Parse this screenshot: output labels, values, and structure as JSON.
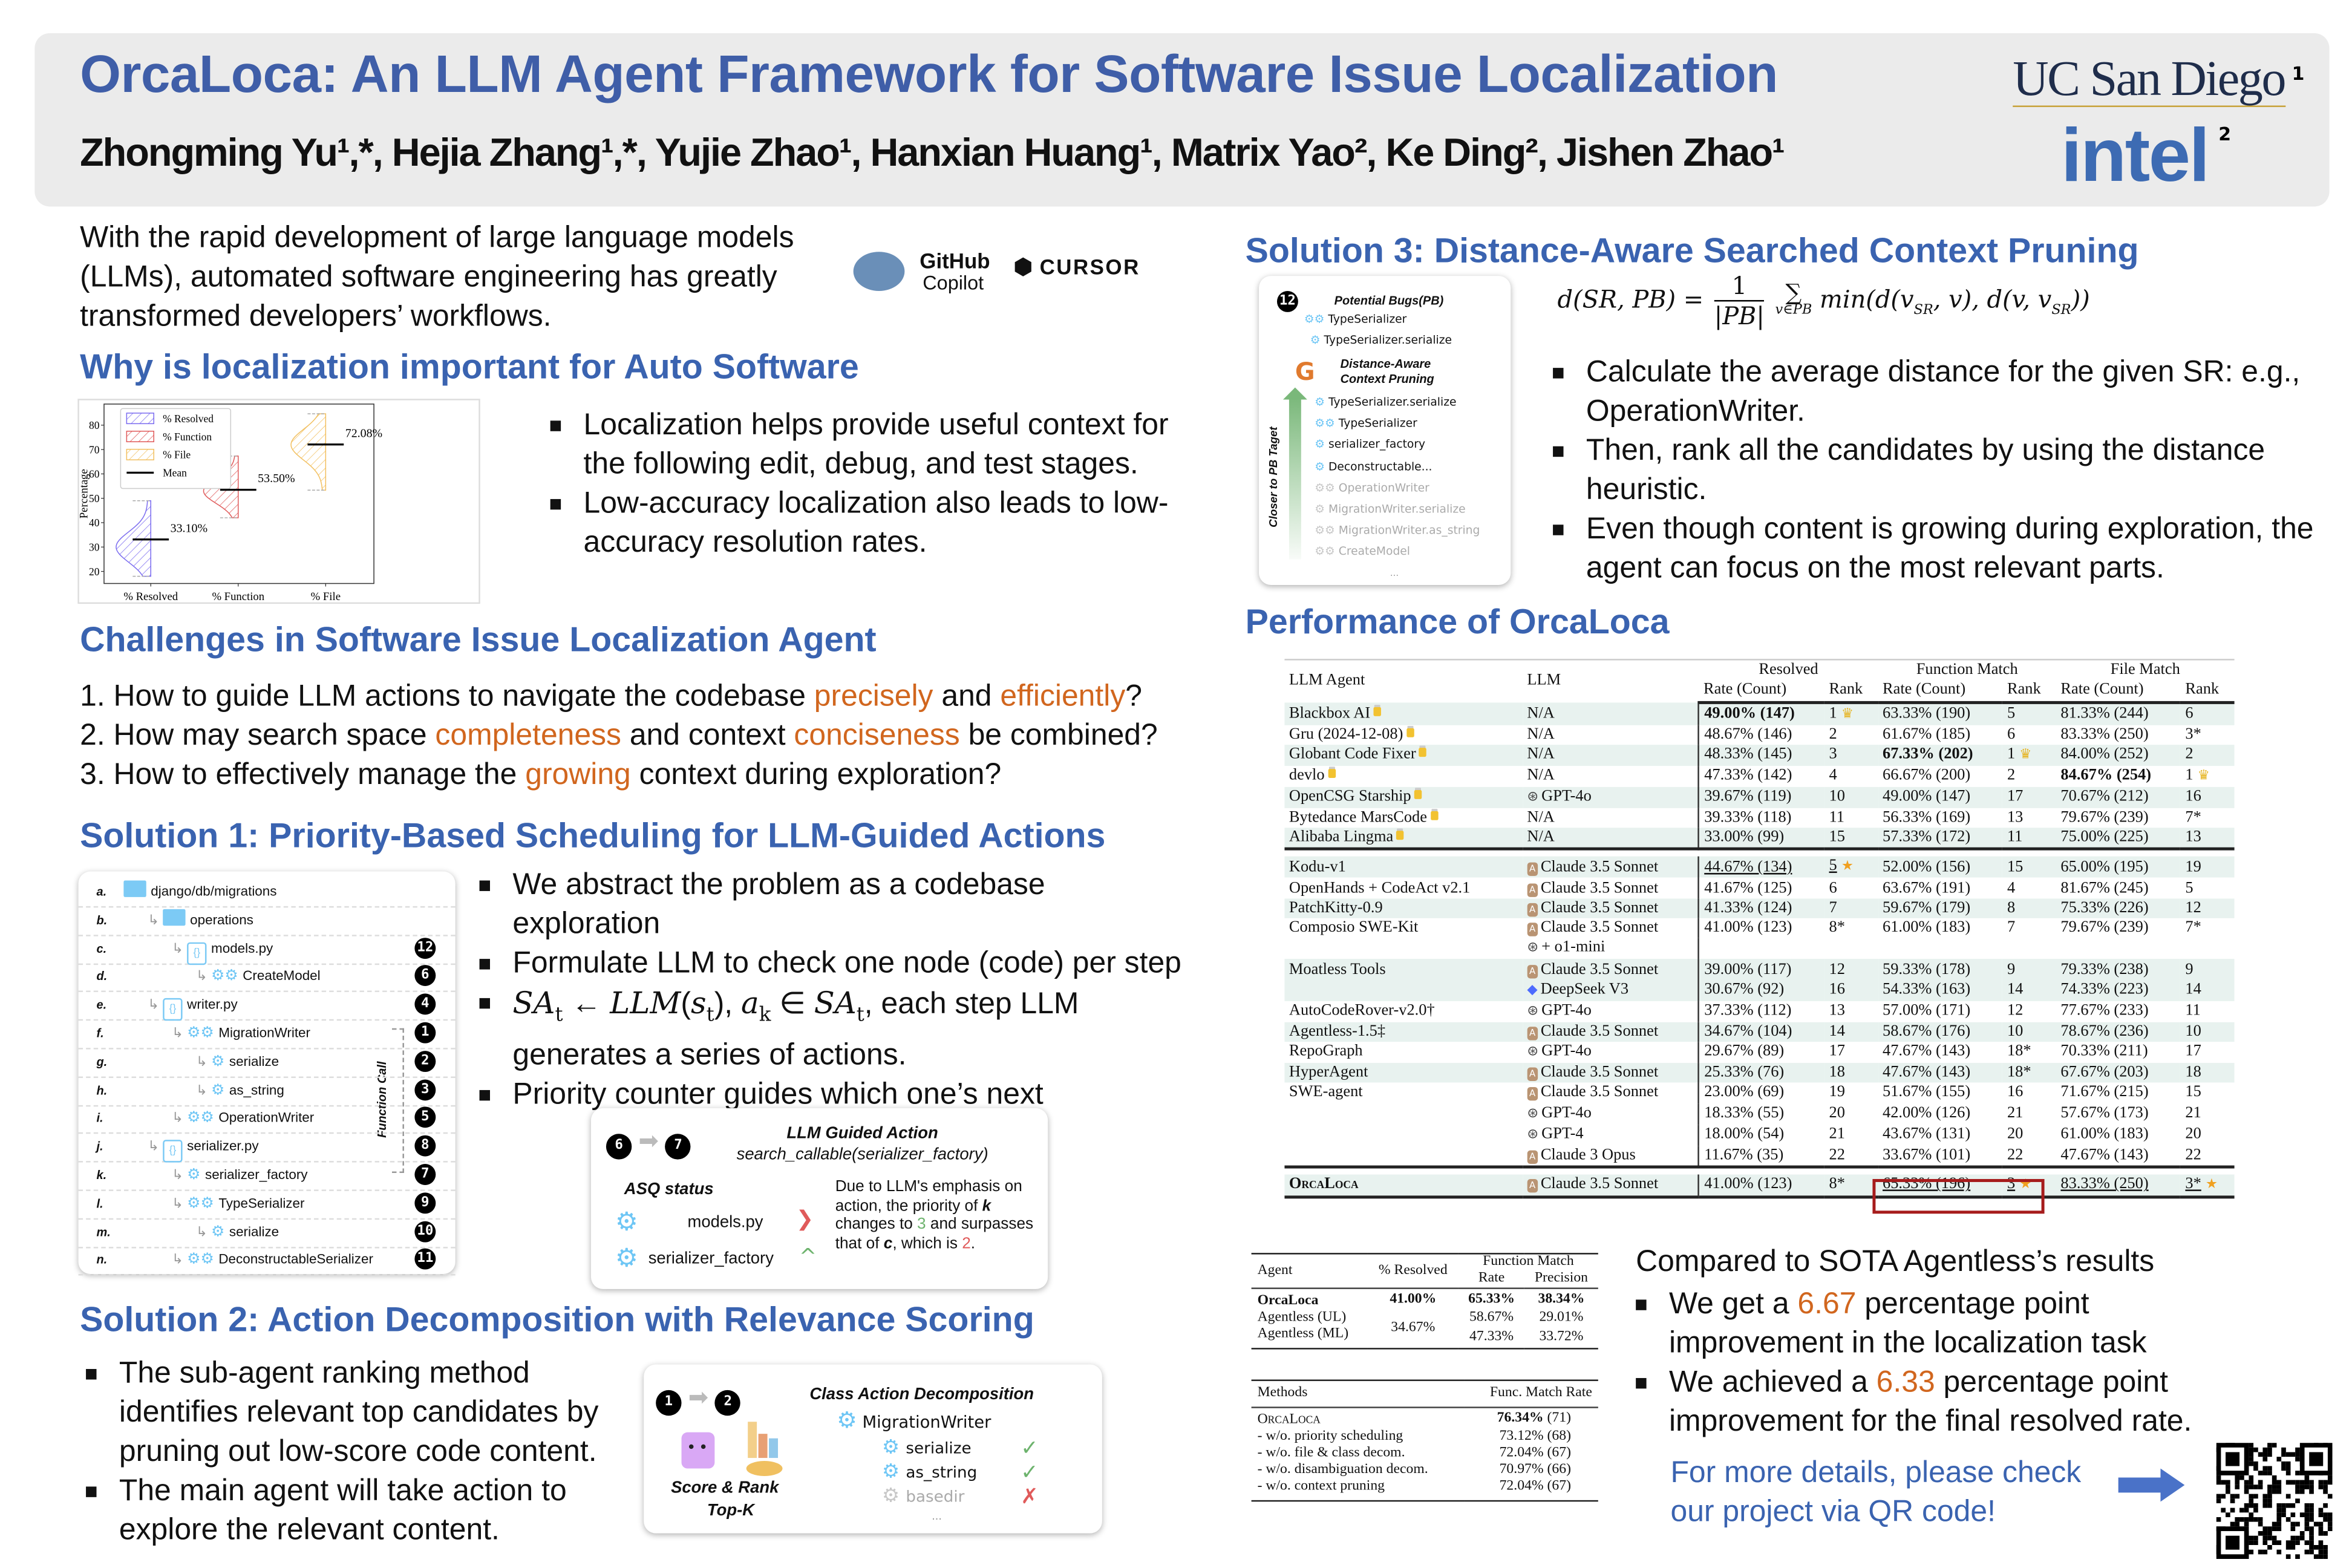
{
  "header": {
    "title": "OrcaLoca: An LLM Agent Framework for Software Issue Localization",
    "authors": "Zhongming Yu¹,*, Hejia Zhang¹,*, Yujie Zhao¹, Hanxian Huang¹, Matrix Yao², Ke Ding², Jishen Zhao¹",
    "logos": {
      "ucsd": "UC San Diego",
      "ucsd_sup": "1",
      "intel": "intel",
      "intel_sup": "2"
    }
  },
  "intro": {
    "text": "With the rapid development of large language models (LLMs), automated software engineering has greatly transformed developers’ workflows.",
    "logos": {
      "github": "GitHub",
      "copilot": "Copilot",
      "cursor": "CURSOR"
    }
  },
  "why": {
    "heading": "Why is localization important for Auto Software",
    "bullets": [
      "Localization helps provide useful context for the following edit, debug, and test stages.",
      "Low-accuracy localization also leads to low-accuracy resolution rates."
    ]
  },
  "chart_data": {
    "type": "violin",
    "categories": [
      "% Resolved",
      "% Function",
      "% File"
    ],
    "ylabel": "Percentage",
    "yticks": [
      20,
      30,
      40,
      50,
      60,
      70,
      80
    ],
    "ylim": [
      15,
      87
    ],
    "legend": [
      "% Resolved",
      "% Function",
      "% File",
      "Mean"
    ],
    "legend_placement": "top-left",
    "series": [
      {
        "name": "% Resolved",
        "min": 18.0,
        "max": 49.0,
        "mode": 30,
        "mean": 33.1,
        "label": "33.10%",
        "color": "#7b6cf0"
      },
      {
        "name": "% Function",
        "min": 42.0,
        "max": 67.33,
        "mode": 53,
        "mean": 53.5,
        "label": "53.50%",
        "color": "#e05a5a"
      },
      {
        "name": "% File",
        "min": 53.33,
        "max": 84.67,
        "mode": 72,
        "mean": 72.08,
        "label": "72.08%",
        "color": "#f2c060"
      }
    ]
  },
  "challenges": {
    "heading": "Challenges in Software Issue Localization Agent",
    "items": [
      [
        {
          "t": "1.  How to guide LLM actions to navigate the codebase "
        },
        {
          "t": "precisely",
          "hl": true
        },
        {
          "t": " and "
        },
        {
          "t": "efficiently",
          "hl": true
        },
        {
          "t": "?"
        }
      ],
      [
        {
          "t": "2.  How may search space "
        },
        {
          "t": "completeness",
          "hl": true
        },
        {
          "t": " and context "
        },
        {
          "t": "conciseness",
          "hl": true
        },
        {
          "t": " be combined?"
        }
      ],
      [
        {
          "t": "3.  How to effectively manage the "
        },
        {
          "t": "growing",
          "hl": true
        },
        {
          "t": " context during exploration?"
        }
      ]
    ]
  },
  "solution1": {
    "heading": "Solution 1: Priority-Based Scheduling for LLM-Guided Actions",
    "tree": [
      {
        "letter": "a.",
        "label": "django/db/migrations",
        "kind": "folder",
        "depth": 0,
        "step": ""
      },
      {
        "letter": "b.",
        "label": "operations",
        "kind": "folder",
        "depth": 1,
        "step": ""
      },
      {
        "letter": "c.",
        "label": "models.py",
        "kind": "file",
        "depth": 2,
        "step": "12"
      },
      {
        "letter": "d.",
        "label": "CreateModel",
        "kind": "class",
        "depth": 3,
        "step": "6"
      },
      {
        "letter": "e.",
        "label": "writer.py",
        "kind": "file",
        "depth": 1,
        "step": "4"
      },
      {
        "letter": "f.",
        "label": "MigrationWriter",
        "kind": "class",
        "depth": 2,
        "step": "1"
      },
      {
        "letter": "g.",
        "label": "serialize",
        "kind": "func",
        "depth": 3,
        "step": "2"
      },
      {
        "letter": "h.",
        "label": "as_string",
        "kind": "func",
        "depth": 3,
        "step": "3"
      },
      {
        "letter": "i.",
        "label": "OperationWriter",
        "kind": "class",
        "depth": 2,
        "step": "5"
      },
      {
        "letter": "j.",
        "label": "serializer.py",
        "kind": "file",
        "depth": 1,
        "step": "8"
      },
      {
        "letter": "k.",
        "label": "serializer_factory",
        "kind": "func",
        "depth": 2,
        "step": "7"
      },
      {
        "letter": "l.",
        "label": "TypeSerializer",
        "kind": "class",
        "depth": 2,
        "step": "9"
      },
      {
        "letter": "m.",
        "label": "serialize",
        "kind": "func",
        "depth": 3,
        "step": "10"
      },
      {
        "letter": "n.",
        "label": "DeconstructableSerializer",
        "kind": "class",
        "depth": 2,
        "step": "11"
      }
    ],
    "function_call": "Function Call",
    "bullets": [
      [
        {
          "t": "We abstract the problem as a codebase exploration"
        }
      ],
      [
        {
          "t": "Formulate LLM to check one node (code) per step"
        }
      ],
      [
        {
          "t": "SA",
          "i": true
        },
        {
          "t": "t",
          "sub": true
        },
        {
          "t": " ← "
        },
        {
          "t": "LLM",
          "i": true
        },
        {
          "t": "("
        },
        {
          "t": "s",
          "i": true
        },
        {
          "t": "t",
          "sub": true
        },
        {
          "t": "), "
        },
        {
          "t": "a",
          "i": true
        },
        {
          "t": "k",
          "sub": true
        },
        {
          "t": " ∈ "
        },
        {
          "t": "SA",
          "i": true
        },
        {
          "t": "t",
          "sub": true
        },
        {
          "t": ", each step LLM generates a series of actions."
        }
      ],
      [
        {
          "t": "Priority counter guides which one’s next"
        }
      ]
    ],
    "guided": {
      "steps": [
        "6",
        "7"
      ],
      "title": "LLM Guided Action",
      "call": "search_callable(serializer_factory)",
      "asq_label": "ASQ status",
      "items": [
        {
          "label": "models.py",
          "dir": "down"
        },
        {
          "label": "serializer_factory",
          "dir": "up"
        }
      ],
      "note": [
        {
          "t": "Due to LLM's emphasis on action, the priority of "
        },
        {
          "t": "k",
          "b": true
        },
        {
          "t": " changes to "
        },
        {
          "t": "3",
          "c": "#6db36d"
        },
        {
          "t": " and surpasses that of "
        },
        {
          "t": "c",
          "b": true
        },
        {
          "t": ", which is "
        },
        {
          "t": "2",
          "c": "#e05a5a"
        },
        {
          "t": "."
        }
      ]
    }
  },
  "solution2": {
    "heading": "Solution 2: Action Decomposition with Relevance Scoring",
    "bullets": [
      "The sub-agent ranking method identifies relevant top candidates by pruning out low-score code content.",
      "The main agent will take action to explore the relevant content."
    ],
    "diagram": {
      "steps": [
        "1",
        "2"
      ],
      "score_label": "Score & Rank",
      "topk_label": "Top-K",
      "title": "Class Action Decomposition",
      "class_name": "MigrationWriter",
      "methods": [
        {
          "name": "serialize",
          "keep": true
        },
        {
          "name": "as_string",
          "keep": true
        },
        {
          "name": "basedir",
          "keep": false
        }
      ],
      "ellipsis": "..."
    }
  },
  "solution3": {
    "heading": "Solution 3: Distance-Aware Searched Context Pruning",
    "diagram": {
      "step": "12",
      "pb_title": "Potential Bugs(PB)",
      "pb_items": [
        {
          "name": "TypeSerializer",
          "kind": "class"
        },
        {
          "name": "TypeSerializer.serialize",
          "kind": "func"
        }
      ],
      "pruning_title": [
        "Distance-Aware",
        "Context Pruning"
      ],
      "ranked": [
        {
          "name": "TypeSerializer.serialize",
          "kind": "func",
          "active": true
        },
        {
          "name": "TypeSerializer",
          "kind": "class",
          "active": true
        },
        {
          "name": "serializer_factory",
          "kind": "func",
          "active": true
        },
        {
          "name": "Deconstructable...",
          "kind": "func",
          "active": true
        },
        {
          "name": "OperationWriter",
          "kind": "class",
          "active": false
        },
        {
          "name": "MigrationWriter.serialize",
          "kind": "func",
          "active": false
        },
        {
          "name": "MigrationWriter.as_string",
          "kind": "class",
          "active": false
        },
        {
          "name": "CreateModel",
          "kind": "class",
          "active": false
        }
      ],
      "axis_label": "Closer to PB Taget",
      "ellipsis": "..."
    },
    "formula": {
      "lhs": "d(SR, PB) =",
      "num": "1",
      "den": "|PB|",
      "sum": "∑",
      "sum_sub": "v∈PB",
      "rhs1": "min(d(v",
      "s1": "SR",
      "rhs2": ", v), d(v, v",
      "s2": "SR",
      "rhs3": "))"
    },
    "bullets": [
      "Calculate the average distance for the given SR: e.g., OperationWriter.",
      "Then, rank all the candidates by using the distance heuristic.",
      "Even though content is growing during exploration, the agent can focus on the most relevant parts."
    ]
  },
  "performance": {
    "heading": "Performance of OrcaLoca",
    "table": {
      "headers": {
        "agent": "LLM Agent",
        "llm": "LLM",
        "resolved": "Resolved",
        "function": "Function Match",
        "file": "File Match",
        "rate": "Rate (Count)",
        "rank": "Rank"
      },
      "rows": [
        {
          "agent": "Blackbox AI",
          "lock": true,
          "llm": "N/A",
          "r": "49.00% (147)",
          "rr": "1",
          "f": "63.33% (190)",
          "fr": "5",
          "fi": "81.33% (244)",
          "fir": "6",
          "bold": [
            "r"
          ],
          "crown": [
            "rr"
          ]
        },
        {
          "agent": "Gru (2024-12-08)",
          "lock": true,
          "llm": "N/A",
          "r": "48.67% (146)",
          "rr": "2",
          "f": "61.67% (185)",
          "fr": "6",
          "fi": "83.33% (250)",
          "fir": "3*"
        },
        {
          "agent": "Globant Code Fixer",
          "lock": true,
          "llm": "N/A",
          "r": "48.33% (145)",
          "rr": "3",
          "f": "67.33% (202)",
          "fr": "1",
          "fi": "84.00% (252)",
          "fir": "2",
          "bold": [
            "f"
          ],
          "crown": [
            "fr"
          ]
        },
        {
          "agent": "devlo",
          "lock": true,
          "llm": "N/A",
          "r": "47.33% (142)",
          "rr": "4",
          "f": "66.67% (200)",
          "fr": "2",
          "fi": "84.67% (254)",
          "fir": "1",
          "bold": [
            "fi"
          ],
          "crown": [
            "fir"
          ]
        },
        {
          "agent": "OpenCSG Starship",
          "lock": true,
          "llm": "GPT-4o",
          "icon": "openai",
          "r": "39.67% (119)",
          "rr": "10",
          "f": "49.00% (147)",
          "fr": "17",
          "fi": "70.67% (212)",
          "fir": "16"
        },
        {
          "agent": "Bytedance MarsCode",
          "lock": true,
          "llm": "N/A",
          "r": "39.33% (118)",
          "rr": "11",
          "f": "56.33% (169)",
          "fr": "13",
          "fi": "79.67% (239)",
          "fir": "7*"
        },
        {
          "agent": "Alibaba Lingma",
          "lock": true,
          "llm": "N/A",
          "r": "33.00% (99)",
          "rr": "15",
          "f": "57.33% (172)",
          "fr": "11",
          "fi": "75.00% (225)",
          "fir": "13",
          "group_end": true
        },
        {
          "agent": "Kodu-v1",
          "llm": "Claude 3.5 Sonnet",
          "icon": "anthropic",
          "r": "44.67% (134)",
          "rr": "5",
          "f": "52.00% (156)",
          "fr": "15",
          "fi": "65.00% (195)",
          "fir": "19",
          "under": [
            "r",
            "rr"
          ],
          "star": [
            "rr"
          ]
        },
        {
          "agent": "OpenHands + CodeAct v2.1",
          "llm": "Claude 3.5 Sonnet",
          "icon": "anthropic",
          "r": "41.67% (125)",
          "rr": "6",
          "f": "63.67% (191)",
          "fr": "4",
          "fi": "81.67% (245)",
          "fir": "5"
        },
        {
          "agent": "PatchKitty-0.9",
          "llm": "Claude 3.5 Sonnet",
          "icon": "anthropic",
          "r": "41.33% (124)",
          "rr": "7",
          "f": "59.67% (179)",
          "fr": "8",
          "fi": "75.33% (226)",
          "fir": "12"
        },
        {
          "agent": "Composio SWE-Kit",
          "llm": "Claude 3.5 Sonnet",
          "icon": "anthropic",
          "r": "41.00% (123)",
          "rr": "8*",
          "f": "61.00% (183)",
          "fr": "7",
          "fi": "79.67% (239)",
          "fir": "7*"
        },
        {
          "agent": "",
          "llm": "+ o1-mini",
          "icon": "openai",
          "r": "",
          "rr": "",
          "f": "",
          "fr": "",
          "fi": "",
          "fir": ""
        },
        {
          "agent": "Moatless Tools",
          "llm": "Claude 3.5 Sonnet",
          "icon": "anthropic",
          "r": "39.00% (117)",
          "rr": "12",
          "f": "59.33% (178)",
          "fr": "9",
          "fi": "79.33% (238)",
          "fir": "9"
        },
        {
          "agent": "",
          "llm": "DeepSeek V3",
          "icon": "deepseek",
          "r": "30.67% (92)",
          "rr": "16",
          "f": "54.33% (163)",
          "fr": "14",
          "fi": "74.33% (223)",
          "fir": "14"
        },
        {
          "agent": "AutoCodeRover-v2.0†",
          "llm": "GPT-4o",
          "icon": "openai",
          "r": "37.33% (112)",
          "rr": "13",
          "f": "57.00% (171)",
          "fr": "12",
          "fi": "77.67% (233)",
          "fir": "11"
        },
        {
          "agent": "Agentless-1.5‡",
          "llm": "Claude 3.5 Sonnet",
          "icon": "anthropic",
          "r": "34.67% (104)",
          "rr": "14",
          "f": "58.67% (176)",
          "fr": "10",
          "fi": "78.67% (236)",
          "fir": "10"
        },
        {
          "agent": "RepoGraph",
          "llm": "GPT-4o",
          "icon": "openai",
          "r": "29.67% (89)",
          "rr": "17",
          "f": "47.67% (143)",
          "fr": "18*",
          "fi": "70.33% (211)",
          "fir": "17"
        },
        {
          "agent": "HyperAgent",
          "llm": "Claude 3.5 Sonnet",
          "icon": "anthropic",
          "r": "25.33% (76)",
          "rr": "18",
          "f": "47.67% (143)",
          "fr": "18*",
          "fi": "67.67% (203)",
          "fir": "18"
        },
        {
          "agent": "SWE-agent",
          "llm": "Claude 3.5 Sonnet",
          "icon": "anthropic",
          "r": "23.00% (69)",
          "rr": "19",
          "f": "51.67% (155)",
          "fr": "16",
          "fi": "71.67% (215)",
          "fir": "15"
        },
        {
          "agent": "",
          "llm": "GPT-4o",
          "icon": "openai",
          "r": "18.33% (55)",
          "rr": "20",
          "f": "42.00% (126)",
          "fr": "21",
          "fi": "57.67% (173)",
          "fir": "21"
        },
        {
          "agent": "",
          "llm": "GPT-4",
          "icon": "openai",
          "r": "18.00% (54)",
          "rr": "21",
          "f": "43.67% (131)",
          "fr": "20",
          "fi": "61.00% (183)",
          "fir": "20"
        },
        {
          "agent": "",
          "llm": "Claude 3 Opus",
          "icon": "anthropic",
          "r": "11.67% (35)",
          "rr": "22",
          "f": "33.67% (101)",
          "fr": "22",
          "fi": "47.67% (143)",
          "fir": "22",
          "group_end": true
        },
        {
          "agent": "OrcaLoca",
          "ours": true,
          "llm": "Claude 3.5 Sonnet",
          "icon": "anthropic",
          "r": "41.00% (123)",
          "rr": "8*",
          "f": "65.33% (196)",
          "fr": "3",
          "fi": "83.33% (250)",
          "fir": "3*",
          "under": [
            "f",
            "fr",
            "fi",
            "fir"
          ],
          "star": [
            "fr",
            "fir"
          ]
        }
      ]
    }
  },
  "comparison": {
    "table1": {
      "headers": {
        "agent": "Agent",
        "resolved": "% Resolved",
        "fm": "Function Match",
        "rate": "Rate",
        "precision": "Precision"
      },
      "rows": [
        {
          "agent": "OrcaLoca",
          "resolved": "41.00%",
          "rate": "65.33%",
          "precision": "38.34%"
        },
        {
          "agent": "Agentless (UL)",
          "resolved": "34.67%",
          "rate": "58.67%",
          "precision": "29.01%"
        },
        {
          "agent": "Agentless (ML)",
          "rate": "47.33%",
          "precision": "33.72%"
        }
      ]
    },
    "table2": {
      "headers": {
        "methods": "Methods",
        "rate": "Func. Match Rate"
      },
      "rows": [
        {
          "method": "OrcaLoca",
          "rate": "76.34%",
          "count": "(71)"
        },
        {
          "method": "- w/o. priority scheduling",
          "rate": "73.12%",
          "count": "(68)"
        },
        {
          "method": "- w/o. file & class decom.",
          "rate": "72.04%",
          "count": "(67)"
        },
        {
          "method": "- w/o. disambiguation decom.",
          "rate": "70.97%",
          "count": "(66)"
        },
        {
          "method": "- w/o. context pruning",
          "rate": "72.04%",
          "count": "(67)"
        }
      ]
    }
  },
  "compared": {
    "title": "Compared to SOTA Agentless’s results",
    "bullets": [
      [
        {
          "t": "We get a "
        },
        {
          "t": "6.67",
          "hl": true
        },
        {
          "t": " percentage point improvement in the localization task"
        }
      ],
      [
        {
          "t": "We achieved a "
        },
        {
          "t": "6.33",
          "hl": true
        },
        {
          "t": " percentage point improvement for the final resolved rate."
        }
      ]
    ],
    "more": "For more details, please check our project via QR code!"
  },
  "colors": {
    "title": "#3f5ea8",
    "heading": "#3a63b0",
    "highlight": "#d1661e",
    "header_bg": "#ebebeb",
    "row_shade": "#e8f2ef",
    "highlight_box": "#a61c1c"
  }
}
